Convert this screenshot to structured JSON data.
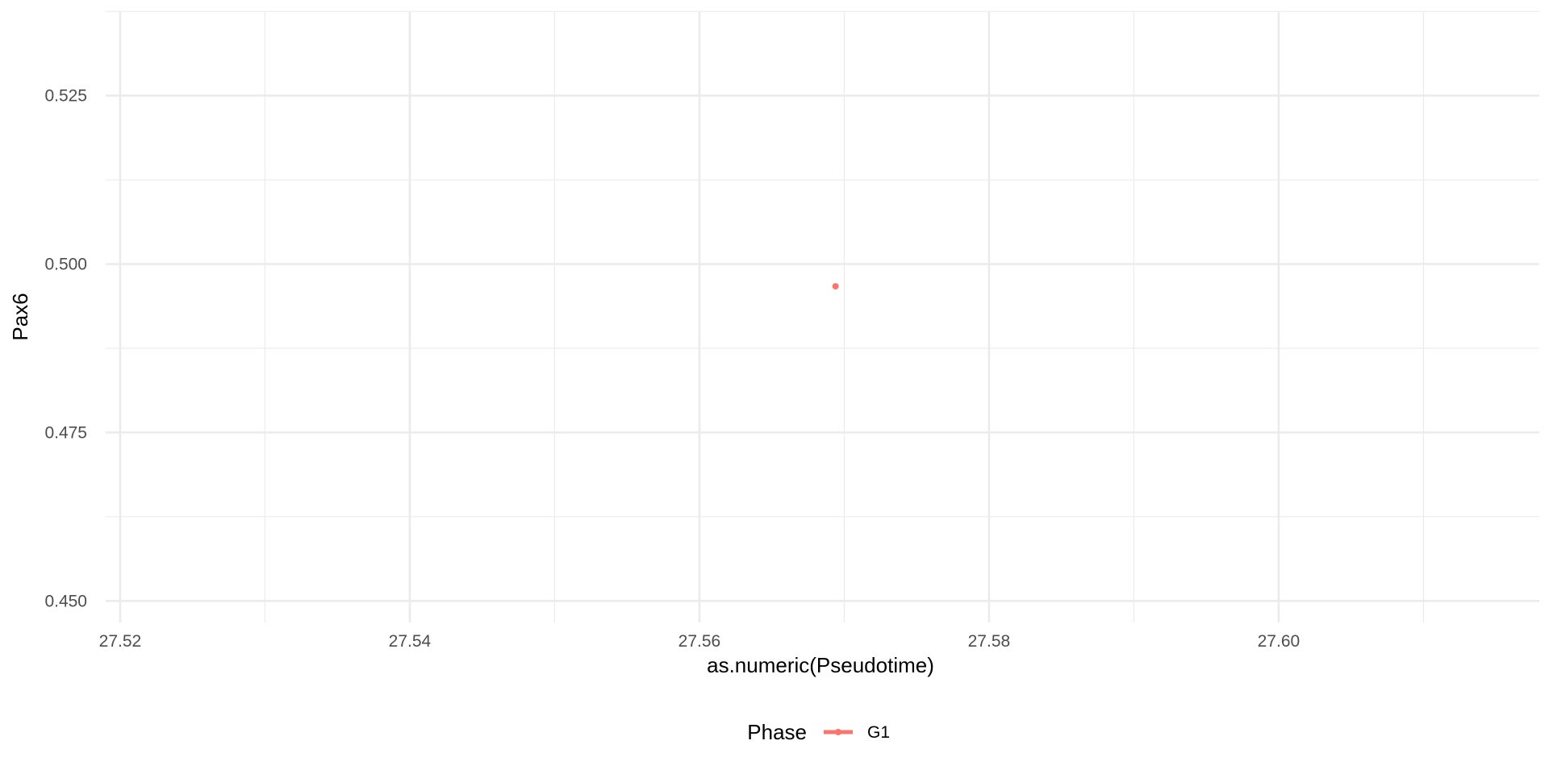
{
  "chart_data": {
    "type": "scatter",
    "title": "",
    "xlabel": "as.numeric(Pseudotime)",
    "ylabel": "Pax6",
    "xlim": [
      27.519,
      27.618
    ],
    "ylim": [
      0.4468,
      0.5374
    ],
    "x_ticks": [
      27.52,
      27.54,
      27.56,
      27.58,
      27.6
    ],
    "x_tick_labels": [
      "27.52",
      "27.54",
      "27.56",
      "27.58",
      "27.60"
    ],
    "x_minor_ticks": [
      27.53,
      27.55,
      27.57,
      27.59,
      27.61
    ],
    "y_ticks": [
      0.45,
      0.475,
      0.5,
      0.525
    ],
    "y_tick_labels": [
      "0.450",
      "0.475",
      "0.500",
      "0.525"
    ],
    "y_minor_ticks": [
      0.4625,
      0.4875,
      0.5125,
      0.5375
    ],
    "grid": true,
    "legend": {
      "title": "Phase",
      "position": "bottom",
      "entries": [
        "G1"
      ]
    },
    "series": [
      {
        "name": "G1",
        "color": "#F8766D",
        "points": [
          {
            "x": 27.5694,
            "y": 0.4967
          }
        ]
      }
    ]
  }
}
